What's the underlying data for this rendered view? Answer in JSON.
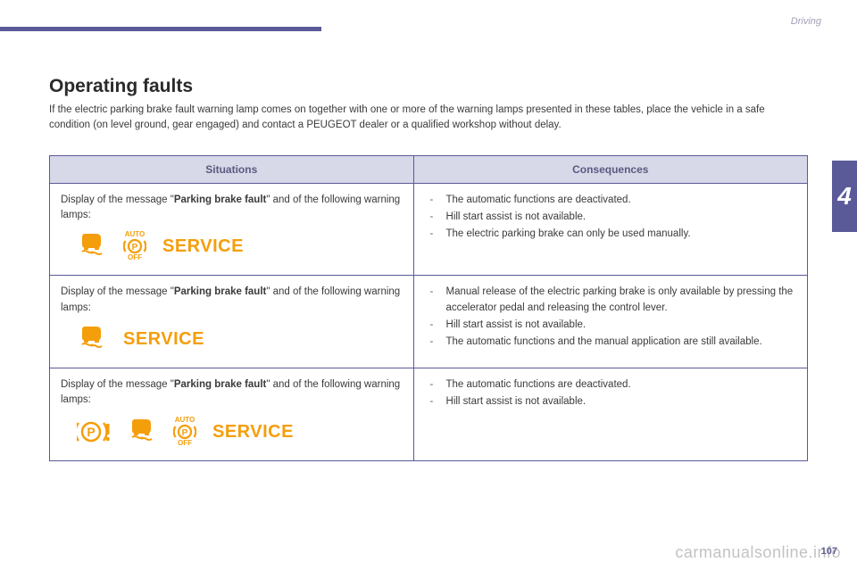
{
  "header": {
    "section": "Driving",
    "chapter": "4",
    "page_number": "107"
  },
  "title": "Operating faults",
  "intro": "If the electric parking brake fault warning lamp comes on together with one or more of the warning lamps presented in these tables, place the vehicle in a safe condition (on level ground, gear engaged) and contact a PEUGEOT dealer or a qualified workshop without delay.",
  "table": {
    "headers": {
      "situations": "Situations",
      "consequences": "Consequences"
    },
    "rows": [
      {
        "situation_prefix": "Display of the message \"",
        "situation_bold": "Parking brake fault",
        "situation_suffix": "\" and of the following warning lamps:",
        "lamps": [
          "skid-icon",
          "auto-p-off-icon",
          "service-text"
        ],
        "consequences": [
          "The automatic functions are deactivated.",
          "Hill start assist is not available.",
          "The electric parking brake can only be used manually."
        ]
      },
      {
        "situation_prefix": "Display of the message \"",
        "situation_bold": "Parking brake fault",
        "situation_suffix": "\" and of the following warning lamps:",
        "lamps": [
          "skid-icon",
          "service-text"
        ],
        "consequences": [
          "Manual release of the electric parking brake is only available by pressing the accelerator pedal and releasing the control lever.",
          "Hill start assist is not available.",
          "The automatic functions and the manual application are still available."
        ]
      },
      {
        "situation_prefix": "Display of the message \"",
        "situation_bold": "Parking brake fault",
        "situation_suffix": "\" and of the following warning lamps:",
        "lamps": [
          "p-excl-icon",
          "skid-icon",
          "auto-p-off-icon",
          "service-text"
        ],
        "consequences": [
          "The automatic functions are deactivated.",
          "Hill start assist is not available."
        ]
      }
    ]
  },
  "icons": {
    "color": "#f59e0b",
    "service_label": "SERVICE",
    "auto_label": "AUTO",
    "off_label": "OFF"
  },
  "watermark": "carmanualsonline.info"
}
